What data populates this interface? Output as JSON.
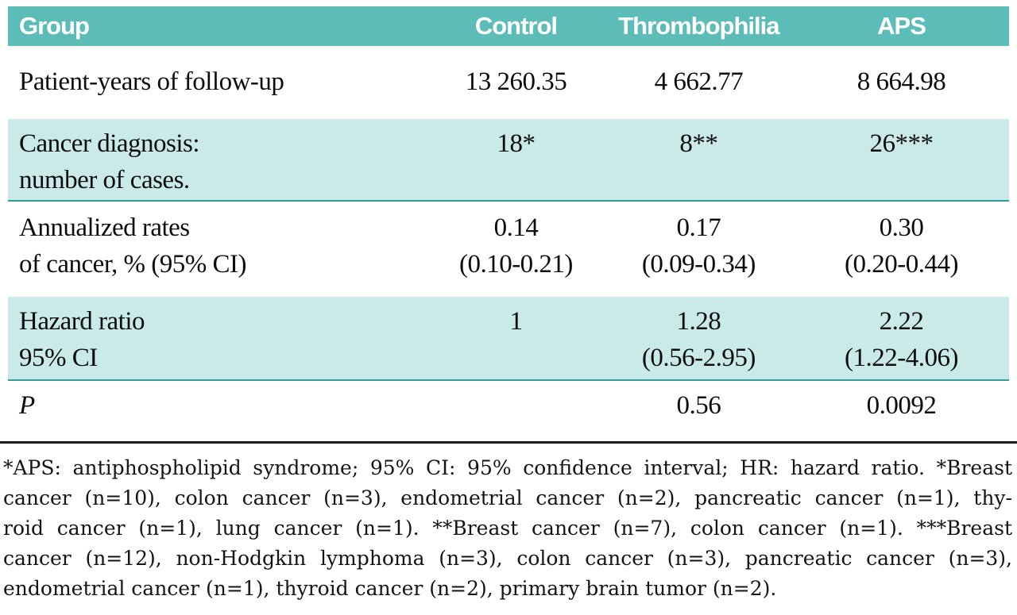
{
  "colors": {
    "header_bg": "#5bbcb8",
    "header_text": "#ffffff",
    "shaded_row_bg": "#c9eae8",
    "teal_rule": "#2f9d99",
    "black_rule": "#1c1c1c"
  },
  "table": {
    "headers": [
      "Group",
      "Control",
      "Thrombophilia",
      "APS"
    ],
    "rows": [
      {
        "cells": [
          [
            "Patient-years of follow-up"
          ],
          [
            "13 260.35"
          ],
          [
            "4 662.77"
          ],
          [
            "8 664.98"
          ]
        ]
      },
      {
        "cells": [
          [
            "Cancer diagnosis:",
            "number of cases."
          ],
          [
            "18*"
          ],
          [
            "8**"
          ],
          [
            "26***"
          ]
        ]
      },
      {
        "cells": [
          [
            "Annualized rates",
            "of cancer, % (95% CI)"
          ],
          [
            "0.14",
            "(0.10-0.21)"
          ],
          [
            "0.17",
            "(0.09-0.34)"
          ],
          [
            "0.30",
            "(0.20-0.44)"
          ]
        ]
      },
      {
        "cells": [
          [
            "Hazard ratio",
            "95% CI"
          ],
          [
            "1"
          ],
          [
            "1.28",
            "(0.56-2.95)"
          ],
          [
            "2.22",
            "(1.22-4.06)"
          ]
        ]
      },
      {
        "cells": [
          [
            "P"
          ],
          [],
          [
            "0.56"
          ],
          [
            "0.0092"
          ]
        ]
      }
    ]
  },
  "footnote": {
    "lines": [
      "*APS: antiphospholipid syndrome; 95% CI: 95% confidence interval; HR: hazard ratio. *Breast",
      "cancer (n=10), colon cancer (n=3), endometrial cancer (n=2), pancreatic cancer (n=1), thy-",
      "roid cancer (n=1), lung cancer (n=1). **Breast cancer (n=7), colon cancer (n=1). ***Breast",
      "cancer (n=12), non-Hodgkin lymphoma (n=3), colon cancer (n=3), pancreatic cancer (n=3),",
      "endometrial cancer (n=1), thyroid cancer (n=2), primary brain tumor (n=2)."
    ]
  }
}
